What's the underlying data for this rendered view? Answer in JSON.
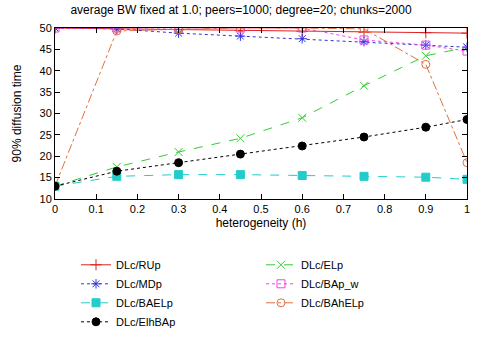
{
  "chart_data": {
    "type": "line",
    "title": "average BW fixed at 1.0; peers=1000; degree=20; chunks=2000",
    "x_label": "heterogeneity (h)",
    "y_label": "90% diffusion time",
    "x": [
      0,
      0.15,
      0.3,
      0.45,
      0.6,
      0.75,
      0.9,
      1
    ],
    "xlim": [
      0,
      1
    ],
    "xticks": [
      0,
      0.1,
      0.2,
      0.3,
      0.4,
      0.5,
      0.6,
      0.7,
      0.8,
      0.9,
      1
    ],
    "ylim": [
      10,
      50
    ],
    "yticks": [
      10,
      15,
      20,
      25,
      30,
      35,
      40,
      45,
      50
    ],
    "grid": false,
    "legend": "bottom",
    "series": [
      {
        "name": "DLc/RUp",
        "color": "#dd2222",
        "marker": "cross",
        "line_style": "solid",
        "values": [
          50,
          49.8,
          49.6,
          49.4,
          49.2,
          49.0,
          48.9,
          48.8
        ]
      },
      {
        "name": "DLc/ELp",
        "color": "#33cc33",
        "marker": "x",
        "line_style": "dash",
        "values": [
          13,
          17.5,
          21,
          24.2,
          29,
          36.5,
          43.5,
          45.5
        ]
      },
      {
        "name": "DLc/MDp",
        "color": "#3333dd",
        "marker": "asterisk",
        "line_style": "dot",
        "values": [
          50,
          49.8,
          48.8,
          48.1,
          47.5,
          46.8,
          46,
          45.5
        ]
      },
      {
        "name": "DLc/BAp_w",
        "color": "#ee44ee",
        "marker": "square-open",
        "line_style": "dot",
        "values": [
          50,
          50,
          50,
          50,
          50,
          47.2,
          46,
          44.6
        ]
      },
      {
        "name": "DLc/BAELp",
        "color": "#22cccc",
        "marker": "square",
        "line_style": "dash",
        "values": [
          13,
          15.3,
          15.7,
          15.7,
          15.5,
          15.3,
          15.1,
          14.6
        ]
      },
      {
        "name": "DLc/BAhELp",
        "color": "#e07040",
        "marker": "circle-open",
        "line_style": "dashdot",
        "values": [
          13,
          49.3,
          49.7,
          50,
          50,
          49.8,
          41.5,
          18.5
        ]
      },
      {
        "name": "DLc/ElhBAp",
        "color": "#000000",
        "marker": "circle",
        "line_style": "dot",
        "values": [
          13,
          16.5,
          18.5,
          20.5,
          22.4,
          24.5,
          26.8,
          28.6
        ]
      }
    ]
  }
}
